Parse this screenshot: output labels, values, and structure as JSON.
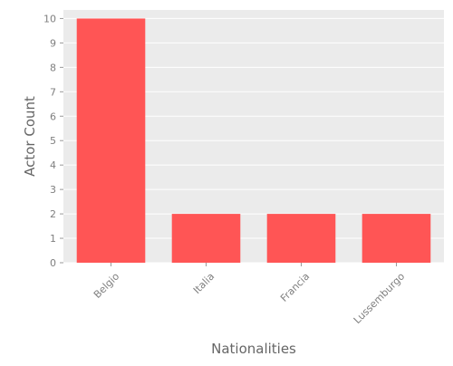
{
  "chart_data": {
    "type": "bar",
    "categories": [
      "Belgio",
      "Italia",
      "Francia",
      "Lussemburgo"
    ],
    "values": [
      10,
      2,
      2,
      2
    ],
    "title": "",
    "xlabel": "Nationalities",
    "ylabel": "Actor Count",
    "ylim": [
      0,
      10.35
    ],
    "yticks": [
      0,
      1,
      2,
      3,
      4,
      5,
      6,
      7,
      8,
      9,
      10
    ],
    "grid": true,
    "x_tick_rotation_deg": 45,
    "colors": {
      "bar": "#FF5555",
      "panel_background": "#EBEBEB",
      "gridline": "#FFFFFF",
      "tick_text": "#7F7F7F",
      "axis_label": "#666666"
    }
  }
}
